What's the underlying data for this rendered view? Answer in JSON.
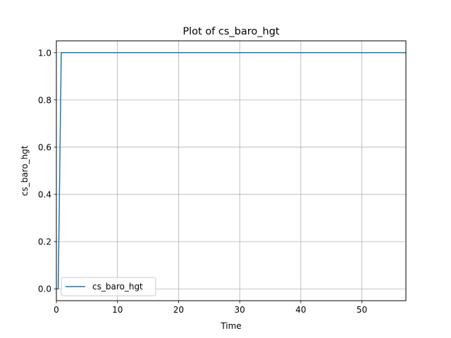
{
  "chart_data": {
    "type": "line",
    "title": "Plot of cs_baro_hgt",
    "xlabel": "Time",
    "ylabel": "cs_baro_hgt",
    "xlim": [
      0,
      57.2
    ],
    "ylim": [
      -0.05,
      1.05
    ],
    "xticks": [
      0,
      10,
      20,
      30,
      40,
      50
    ],
    "yticks": [
      0.0,
      0.2,
      0.4,
      0.6,
      0.8,
      1.0
    ],
    "xtick_labels": [
      "0",
      "10",
      "20",
      "30",
      "40",
      "50"
    ],
    "ytick_labels": [
      "0.0",
      "0.2",
      "0.4",
      "0.6",
      "0.8",
      "1.0"
    ],
    "grid": true,
    "legend_position": "lower-left",
    "series": [
      {
        "name": "cs_baro_hgt",
        "color": "#1f77b4",
        "x": [
          0,
          0.3,
          0.8,
          57.2
        ],
        "y": [
          0,
          0,
          1,
          1
        ]
      }
    ]
  }
}
